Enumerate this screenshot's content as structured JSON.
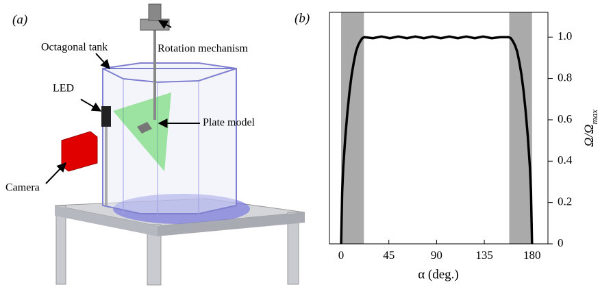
{
  "panel_a": {
    "label": "(a)",
    "labels": {
      "tank": "Octagonal tank",
      "rotation": "Rotation mechanism",
      "led": "LED",
      "plate": "Plate model",
      "camera": "Camera"
    }
  },
  "chart_data": {
    "type": "line",
    "panel_label": "(b)",
    "xlabel": "α (deg.)",
    "ylabel": {
      "main": "Ω/Ω",
      "sub": "max"
    },
    "xlim": [
      -11,
      195
    ],
    "ylim": [
      0,
      1.12
    ],
    "xticks": [
      0,
      45,
      90,
      135,
      180
    ],
    "yticks": [
      0,
      0.2,
      0.4,
      0.6,
      0.8,
      {
        "value": 1,
        "label": "1.0"
      }
    ],
    "shaded_regions": [
      [
        0,
        21.5
      ],
      [
        158.5,
        180
      ]
    ],
    "shade_color": "#aaaaaa",
    "series": [
      {
        "color": "#000000",
        "x": [
          0,
          1,
          2,
          4,
          6,
          8,
          10,
          12,
          14,
          16,
          18,
          20,
          22,
          30,
          38,
          46,
          54,
          62,
          70,
          78,
          86,
          94,
          102,
          110,
          118,
          126,
          134,
          142,
          150,
          158,
          160,
          162,
          164,
          166,
          168,
          170,
          172,
          174,
          176,
          178,
          179,
          180
        ],
        "values": [
          0,
          0.25,
          0.37,
          0.52,
          0.64,
          0.74,
          0.82,
          0.88,
          0.93,
          0.96,
          0.98,
          0.995,
          1.0,
          0.995,
          1.003,
          0.995,
          1.003,
          0.995,
          1.003,
          0.995,
          1.003,
          0.995,
          1.003,
          0.995,
          1.003,
          0.995,
          1.003,
          0.995,
          1.0,
          1.0,
          0.995,
          0.98,
          0.96,
          0.93,
          0.88,
          0.82,
          0.74,
          0.64,
          0.52,
          0.37,
          0.25,
          0
        ]
      }
    ]
  }
}
